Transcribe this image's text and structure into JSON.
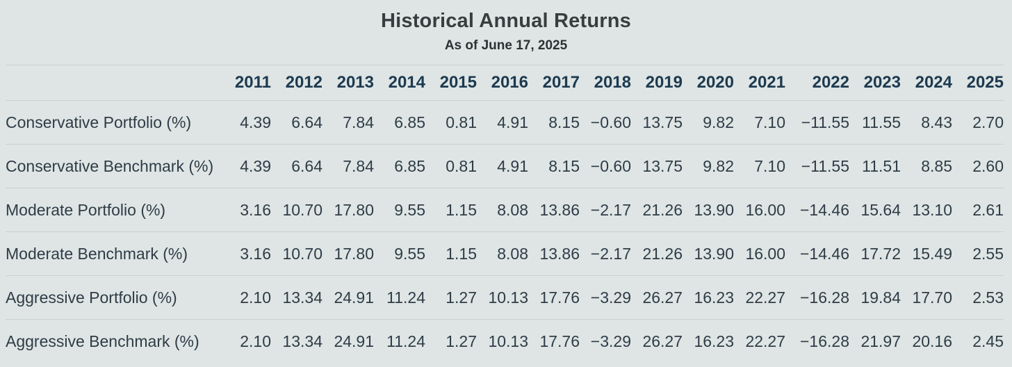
{
  "header": {
    "title": "Historical Annual Returns",
    "subtitle": "As of June 17, 2025"
  },
  "table": {
    "years": [
      "2011",
      "2012",
      "2013",
      "2014",
      "2015",
      "2016",
      "2017",
      "2018",
      "2019",
      "2020",
      "2021",
      "2022",
      "2023",
      "2024",
      "2025"
    ],
    "wide_year": "2022",
    "rows": [
      {
        "label": "Conservative Portfolio (%)",
        "values": [
          "4.39",
          "6.64",
          "7.84",
          "6.85",
          "0.81",
          "4.91",
          "8.15",
          "−0.60",
          "13.75",
          "9.82",
          "7.10",
          "−11.55",
          "11.55",
          "8.43",
          "2.70"
        ]
      },
      {
        "label": "Conservative Benchmark (%)",
        "values": [
          "4.39",
          "6.64",
          "7.84",
          "6.85",
          "0.81",
          "4.91",
          "8.15",
          "−0.60",
          "13.75",
          "9.82",
          "7.10",
          "−11.55",
          "11.51",
          "8.85",
          "2.60"
        ]
      },
      {
        "label": "Moderate Portfolio (%)",
        "values": [
          "3.16",
          "10.70",
          "17.80",
          "9.55",
          "1.15",
          "8.08",
          "13.86",
          "−2.17",
          "21.26",
          "13.90",
          "16.00",
          "−14.46",
          "15.64",
          "13.10",
          "2.61"
        ]
      },
      {
        "label": "Moderate Benchmark (%)",
        "values": [
          "3.16",
          "10.70",
          "17.80",
          "9.55",
          "1.15",
          "8.08",
          "13.86",
          "−2.17",
          "21.26",
          "13.90",
          "16.00",
          "−14.46",
          "17.72",
          "15.49",
          "2.55"
        ]
      },
      {
        "label": "Aggressive Portfolio (%)",
        "values": [
          "2.10",
          "13.34",
          "24.91",
          "11.24",
          "1.27",
          "10.13",
          "17.76",
          "−3.29",
          "26.27",
          "16.23",
          "22.27",
          "−16.28",
          "19.84",
          "17.70",
          "2.53"
        ]
      },
      {
        "label": "Aggressive Benchmark (%)",
        "values": [
          "2.10",
          "13.34",
          "24.91",
          "11.24",
          "1.27",
          "10.13",
          "17.76",
          "−3.29",
          "26.27",
          "16.23",
          "22.27",
          "−16.28",
          "21.97",
          "20.16",
          "2.45"
        ]
      }
    ]
  },
  "chart_data": {
    "type": "table",
    "title": "Historical Annual Returns",
    "subtitle": "As of June 17, 2025",
    "columns": [
      "2011",
      "2012",
      "2013",
      "2014",
      "2015",
      "2016",
      "2017",
      "2018",
      "2019",
      "2020",
      "2021",
      "2022",
      "2023",
      "2024",
      "2025"
    ],
    "series": [
      {
        "name": "Conservative Portfolio (%)",
        "values": [
          4.39,
          6.64,
          7.84,
          6.85,
          0.81,
          4.91,
          8.15,
          -0.6,
          13.75,
          9.82,
          7.1,
          -11.55,
          11.55,
          8.43,
          2.7
        ]
      },
      {
        "name": "Conservative Benchmark (%)",
        "values": [
          4.39,
          6.64,
          7.84,
          6.85,
          0.81,
          4.91,
          8.15,
          -0.6,
          13.75,
          9.82,
          7.1,
          -11.55,
          11.51,
          8.85,
          2.6
        ]
      },
      {
        "name": "Moderate Portfolio (%)",
        "values": [
          3.16,
          10.7,
          17.8,
          9.55,
          1.15,
          8.08,
          13.86,
          -2.17,
          21.26,
          13.9,
          16.0,
          -14.46,
          15.64,
          13.1,
          2.61
        ]
      },
      {
        "name": "Moderate Benchmark (%)",
        "values": [
          3.16,
          10.7,
          17.8,
          9.55,
          1.15,
          8.08,
          13.86,
          -2.17,
          21.26,
          13.9,
          16.0,
          -14.46,
          17.72,
          15.49,
          2.55
        ]
      },
      {
        "name": "Aggressive Portfolio (%)",
        "values": [
          2.1,
          13.34,
          24.91,
          11.24,
          1.27,
          10.13,
          17.76,
          -3.29,
          26.27,
          16.23,
          22.27,
          -16.28,
          19.84,
          17.7,
          2.53
        ]
      },
      {
        "name": "Aggressive Benchmark (%)",
        "values": [
          2.1,
          13.34,
          24.91,
          11.24,
          1.27,
          10.13,
          17.76,
          -3.29,
          26.27,
          16.23,
          22.27,
          -16.28,
          21.97,
          20.16,
          2.45
        ]
      }
    ],
    "units": "percent",
    "grid": "horizontal-dividers",
    "legend_position": "none"
  },
  "colors": {
    "background": "#dfe5e4",
    "divider": "#c9d0ce",
    "title_text": "#3a3d3f",
    "subtitle_text": "#2d3134",
    "year_header_text": "#1c3a50",
    "body_text": "#2e3c47"
  }
}
